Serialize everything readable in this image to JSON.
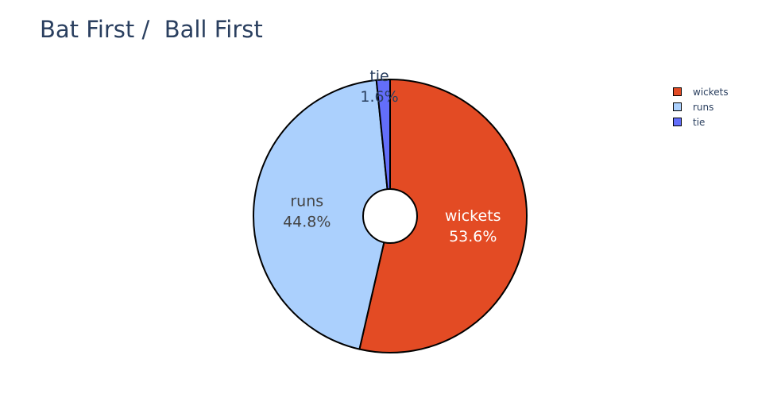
{
  "chart_data": {
    "type": "pie",
    "title": "Bat First /  Ball First",
    "hole": true,
    "labels": [
      "wickets",
      "runs",
      "tie"
    ],
    "values": [
      53.6,
      44.8,
      1.6
    ],
    "percent_labels": [
      "53.6%",
      "44.8%",
      "1.6%"
    ],
    "colors": [
      "#e34b24",
      "#abd0fd",
      "#636efa"
    ],
    "text_colors": [
      "#ffffff",
      "#444444",
      "#2a3f5f"
    ],
    "legend_position": "top-right",
    "direction": "clockwise",
    "start": "top"
  }
}
